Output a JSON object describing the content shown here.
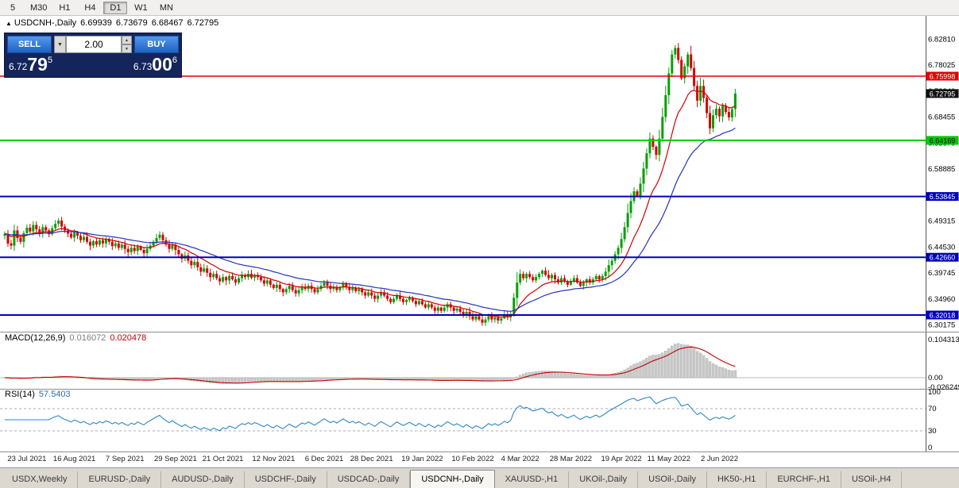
{
  "toolbar": {
    "timeframes": [
      {
        "label": "5",
        "active": false
      },
      {
        "label": "M30",
        "active": false
      },
      {
        "label": "H1",
        "active": false
      },
      {
        "label": "H4",
        "active": false
      },
      {
        "label": "D1",
        "active": true
      },
      {
        "label": "W1",
        "active": false
      },
      {
        "label": "MN",
        "active": false
      }
    ]
  },
  "chart_header": {
    "marker": "▲",
    "title": "USDCNH-,Daily",
    "open": "6.69939",
    "high": "6.73679",
    "low": "6.68467",
    "close": "6.72795"
  },
  "trade_panel": {
    "sell_label": "SELL",
    "buy_label": "BUY",
    "volume": "2.00",
    "dropdown_icon": "▼",
    "spin_up_icon": "▲",
    "spin_down_icon": "▼",
    "sell_price": {
      "small": "6.72",
      "big": "79",
      "sup": "5"
    },
    "buy_price": {
      "small": "6.73",
      "big": "00",
      "sup": "6"
    }
  },
  "chart_data": {
    "type": "candlestick",
    "symbol": "USDCNH-",
    "timeframe": "Daily",
    "last_ohlc": {
      "open": 6.69939,
      "high": 6.73679,
      "low": 6.68467,
      "close": 6.72795
    },
    "candle_up_color": "#089E08",
    "candle_down_color": "#D40000",
    "price_axis": {
      "min": 6.2939,
      "max": 6.8593,
      "ticks": [
        "6.82810",
        "6.78025",
        "6.73240",
        "6.68455",
        "6.63670",
        "6.58885",
        "6.54100",
        "6.49315",
        "6.44530",
        "6.39745",
        "6.34960",
        "6.30175"
      ]
    },
    "hlines": [
      {
        "price": 6.75998,
        "label": "6.75998",
        "color": "#E00000",
        "text_color": "#ffffff",
        "width": 1.4
      },
      {
        "price": 6.64169,
        "label": "6.64169",
        "color": "#00CC00",
        "text_color": "#000000",
        "width": 2
      },
      {
        "price": 6.53845,
        "label": "6.53845",
        "color": "#0000BB",
        "text_color": "#ffffff",
        "width": 2
      },
      {
        "price": 6.4266,
        "label": "6.42660",
        "color": "#0000BB",
        "text_color": "#ffffff",
        "width": 2
      },
      {
        "price": 6.32018,
        "label": "6.32018",
        "color": "#0000BB",
        "text_color": "#ffffff",
        "width": 2
      }
    ],
    "current_price": {
      "price": 6.72795,
      "label": "6.72795",
      "bg": "#111111",
      "text_color": "#ffffff"
    },
    "moving_averages": [
      {
        "period": 13,
        "color": "#D00000"
      },
      {
        "period": 34,
        "color": "#2233BB"
      }
    ],
    "x_labels": [
      {
        "i": 7,
        "t": "23 Jul 2021"
      },
      {
        "i": 22,
        "t": "16 Aug 2021"
      },
      {
        "i": 38,
        "t": "7 Sep 2021"
      },
      {
        "i": 54,
        "t": "29 Sep 2021"
      },
      {
        "i": 69,
        "t": "21 Oct 2021"
      },
      {
        "i": 85,
        "t": "12 Nov 2021"
      },
      {
        "i": 101,
        "t": "6 Dec 2021"
      },
      {
        "i": 116,
        "t": "28 Dec 2021"
      },
      {
        "i": 132,
        "t": "19 Jan 2022"
      },
      {
        "i": 148,
        "t": "10 Feb 2022"
      },
      {
        "i": 163,
        "t": "4 Mar 2022"
      },
      {
        "i": 179,
        "t": "28 Mar 2022"
      },
      {
        "i": 195,
        "t": "19 Apr 2022"
      },
      {
        "i": 210,
        "t": "11 May 2022"
      },
      {
        "i": 226,
        "t": "2 Jun 2022"
      }
    ],
    "closes": [
      6.47,
      6.452,
      6.448,
      6.476,
      6.462,
      6.455,
      6.471,
      6.481,
      6.474,
      6.486,
      6.478,
      6.47,
      6.482,
      6.476,
      6.469,
      6.48,
      6.488,
      6.494,
      6.483,
      6.476,
      6.47,
      6.463,
      6.472,
      6.466,
      6.458,
      6.464,
      6.455,
      6.448,
      6.456,
      6.45,
      6.458,
      6.452,
      6.46,
      6.455,
      6.447,
      6.452,
      6.444,
      6.45,
      6.442,
      6.436,
      6.444,
      6.438,
      6.446,
      6.44,
      6.434,
      6.442,
      6.448,
      6.455,
      6.462,
      6.468,
      6.458,
      6.45,
      6.442,
      6.449,
      6.44,
      6.432,
      6.424,
      6.43,
      6.42,
      6.412,
      6.418,
      6.408,
      6.4,
      6.406,
      6.398,
      6.39,
      6.396,
      6.388,
      6.382,
      6.39,
      6.384,
      6.392,
      6.386,
      6.38,
      6.388,
      6.394,
      6.39,
      6.396,
      6.389,
      6.394,
      6.39,
      6.384,
      6.378,
      6.384,
      6.376,
      6.37,
      6.376,
      6.368,
      6.362,
      6.368,
      6.374,
      6.366,
      6.36,
      6.366,
      6.372,
      6.368,
      6.374,
      6.368,
      6.362,
      6.368,
      6.374,
      6.38,
      6.374,
      6.368,
      6.372,
      6.366,
      6.372,
      6.378,
      6.372,
      6.366,
      6.37,
      6.364,
      6.368,
      6.362,
      6.356,
      6.362,
      6.356,
      6.35,
      6.356,
      6.362,
      6.356,
      6.35,
      6.344,
      6.35,
      6.356,
      6.35,
      6.344,
      6.348,
      6.352,
      6.346,
      6.34,
      6.346,
      6.34,
      6.334,
      6.34,
      6.334,
      6.328,
      6.334,
      6.328,
      6.334,
      6.34,
      6.334,
      6.328,
      6.332,
      6.326,
      6.32,
      6.326,
      6.318,
      6.312,
      6.318,
      6.312,
      6.306,
      6.312,
      6.318,
      6.312,
      6.316,
      6.31,
      6.314,
      6.32,
      6.316,
      6.322,
      6.352,
      6.38,
      6.396,
      6.388,
      6.396,
      6.39,
      6.384,
      6.39,
      6.396,
      6.402,
      6.394,
      6.388,
      6.394,
      6.386,
      6.38,
      6.388,
      6.382,
      6.376,
      6.382,
      6.388,
      6.38,
      6.374,
      6.38,
      6.386,
      6.38,
      6.386,
      6.392,
      6.386,
      6.392,
      6.4,
      6.412,
      6.42,
      6.432,
      6.444,
      6.46,
      6.482,
      6.508,
      6.53,
      6.548,
      6.54,
      6.562,
      6.59,
      6.618,
      6.645,
      6.63,
      6.615,
      6.645,
      6.685,
      6.725,
      6.765,
      6.8,
      6.812,
      6.79,
      6.756,
      6.778,
      6.8,
      6.775,
      6.742,
      6.715,
      6.742,
      6.72,
      6.692,
      6.664,
      6.688,
      6.7,
      6.686,
      6.706,
      6.694,
      6.684,
      6.699,
      6.72795
    ],
    "macd": {
      "title": "MACD(12,26,9)",
      "fast": 12,
      "slow": 26,
      "signal": 9,
      "value1": "0.016072",
      "value2": "0.020478",
      "axis": [
        "0.104313",
        "0.00",
        "-0.026249"
      ],
      "hist_color": "#C9C9C9",
      "signal_color": "#C00000"
    },
    "rsi": {
      "title": "RSI(14)",
      "period": 14,
      "value": "57.5403",
      "levels": [
        100,
        70,
        30,
        0
      ],
      "line_color": "#2E86C8"
    }
  },
  "bottom_tabs": {
    "items": [
      {
        "label": "USDX,Weekly",
        "active": false
      },
      {
        "label": "EURUSD-,Daily",
        "active": false
      },
      {
        "label": "AUDUSD-,Daily",
        "active": false
      },
      {
        "label": "USDCHF-,Daily",
        "active": false
      },
      {
        "label": "USDCAD-,Daily",
        "active": false
      },
      {
        "label": "USDCNH-,Daily",
        "active": true
      },
      {
        "label": "XAUUSD-,H1",
        "active": false
      },
      {
        "label": "UKOil-,Daily",
        "active": false
      },
      {
        "label": "USOil-,Daily",
        "active": false
      },
      {
        "label": "HK50-,H1",
        "active": false
      },
      {
        "label": "EURCHF-,H1",
        "active": false
      },
      {
        "label": "USOil-,H4",
        "active": false
      }
    ]
  }
}
